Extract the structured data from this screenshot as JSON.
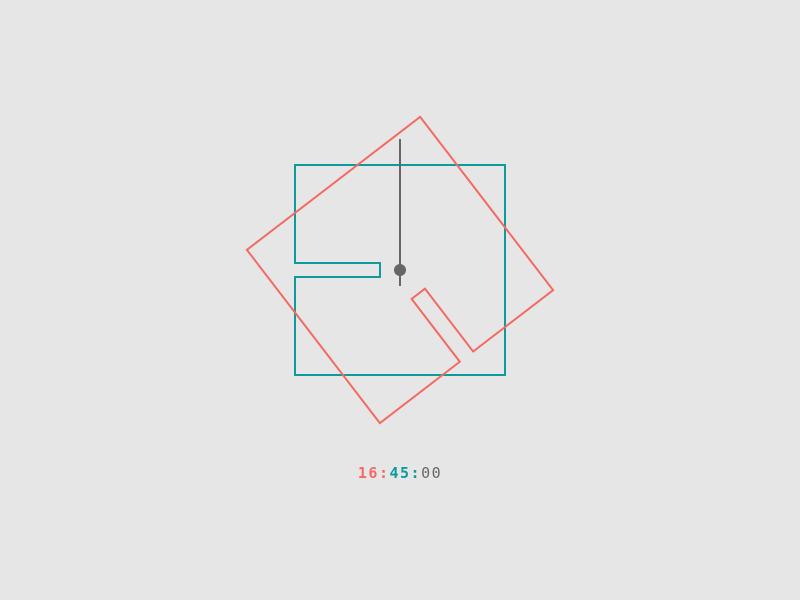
{
  "time": {
    "hours": "16",
    "minutes": "45",
    "seconds": "00",
    "separator": ":"
  },
  "clock": {
    "hour_value": 16,
    "minute_value": 45,
    "second_value": 0
  },
  "colors": {
    "background": "#e6e6e6",
    "hour": "#f36a63",
    "minute": "#0f9b9b",
    "second": "#666666"
  }
}
